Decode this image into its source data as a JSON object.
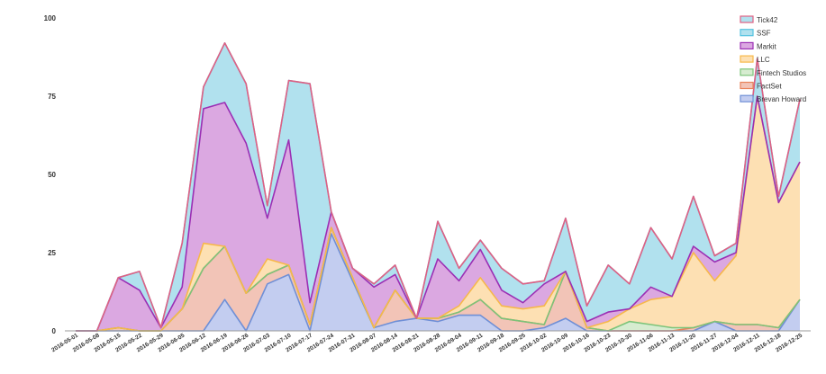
{
  "chart_data": {
    "type": "area",
    "stacked": true,
    "title": "",
    "xlabel": "",
    "ylabel": "",
    "ylim": [
      0,
      100
    ],
    "yticks": [
      0,
      25,
      50,
      75,
      100
    ],
    "grid": false,
    "legend_position": "top-right",
    "x": [
      "2016-05-01",
      "2016-05-08",
      "2016-05-15",
      "2016-05-22",
      "2016-05-29",
      "2016-06-05",
      "2016-06-12",
      "2016-06-19",
      "2016-06-26",
      "2016-07-03",
      "2016-07-10",
      "2016-07-17",
      "2016-07-24",
      "2016-07-31",
      "2016-08-07",
      "2016-08-14",
      "2016-08-21",
      "2016-08-28",
      "2016-09-04",
      "2016-09-11",
      "2016-09-18",
      "2016-09-25",
      "2016-10-02",
      "2016-10-09",
      "2016-10-16",
      "2016-10-23",
      "2016-10-30",
      "2016-11-06",
      "2016-11-13",
      "2016-11-20",
      "2016-11-27",
      "2016-12-04",
      "2016-12-11",
      "2016-12-18",
      "2016-12-25"
    ],
    "series": [
      {
        "name": "Brevan Howard",
        "color": "#6f8fd6",
        "fill": "#c3cdf0",
        "values": [
          0,
          0,
          0,
          0,
          0,
          0,
          0,
          10,
          0,
          15,
          18,
          0,
          31,
          16,
          1,
          3,
          4,
          3,
          5,
          5,
          0,
          0,
          1,
          4,
          0,
          0,
          0,
          0,
          0,
          0,
          3,
          0,
          0,
          0,
          10
        ]
      },
      {
        "name": "FactSet",
        "color": "#e8825a",
        "fill": "#f2c4b7",
        "values": [
          0,
          0,
          1,
          0,
          0,
          7,
          20,
          17,
          12,
          3,
          3,
          2,
          2,
          1,
          0,
          10,
          0,
          1,
          1,
          5,
          4,
          3,
          1,
          15,
          1,
          0,
          0,
          0,
          0,
          1,
          0,
          2,
          2,
          1,
          0
        ]
      },
      {
        "name": "Fintech Studios",
        "color": "#7cc47a",
        "fill": "#d6ecd0",
        "values": [
          0,
          0,
          0,
          0,
          0,
          0,
          0,
          0,
          0,
          0,
          0,
          0,
          0,
          0,
          0,
          0,
          0,
          0,
          0,
          0,
          0,
          0,
          0,
          0,
          0,
          0,
          3,
          2,
          1,
          0,
          0,
          0,
          0,
          0,
          0
        ]
      },
      {
        "name": "LLC",
        "color": "#f7b84a",
        "fill": "#fde0b3",
        "values": [
          0,
          0,
          0,
          0,
          0,
          0,
          8,
          0,
          0,
          5,
          0,
          0,
          0,
          0,
          0,
          0,
          0,
          0,
          2,
          7,
          4,
          4,
          6,
          0,
          0,
          3,
          4,
          8,
          10,
          24,
          13,
          22,
          73,
          40,
          44
        ]
      },
      {
        "name": "Markit",
        "color": "#9b2fb4",
        "fill": "#dba8e1",
        "values": [
          0,
          0,
          16,
          13,
          1,
          7,
          43,
          46,
          48,
          13,
          40,
          7,
          5,
          3,
          13,
          5,
          0,
          19,
          8,
          9,
          5,
          2,
          7,
          0,
          2,
          3,
          0,
          4,
          0,
          2,
          6,
          1,
          0,
          0,
          0
        ]
      },
      {
        "name": "SSF",
        "color": "#55c3e0",
        "fill": "#b1e1ee",
        "values": [
          0,
          0,
          0,
          6,
          0,
          14,
          7,
          19,
          19,
          4,
          19,
          70,
          0,
          0,
          1,
          3,
          0,
          12,
          4,
          3,
          7,
          6,
          1,
          17,
          5,
          15,
          8,
          19,
          12,
          16,
          2,
          3,
          12,
          2,
          20
        ]
      },
      {
        "name": "Tick42",
        "color": "#e06083",
        "fill": "#b1e1ee",
        "values": [
          0,
          0,
          0,
          0,
          0,
          0,
          0,
          0,
          0,
          0,
          0,
          0,
          0,
          0,
          0,
          0,
          0,
          0,
          0,
          0,
          0,
          0,
          0,
          0,
          0,
          0,
          0,
          0,
          0,
          0,
          0,
          0,
          0,
          0,
          0
        ]
      }
    ],
    "legend_order": [
      "Tick42",
      "SSF",
      "Markit",
      "LLC",
      "Fintech Studios",
      "FactSet",
      "Brevan Howard"
    ]
  }
}
